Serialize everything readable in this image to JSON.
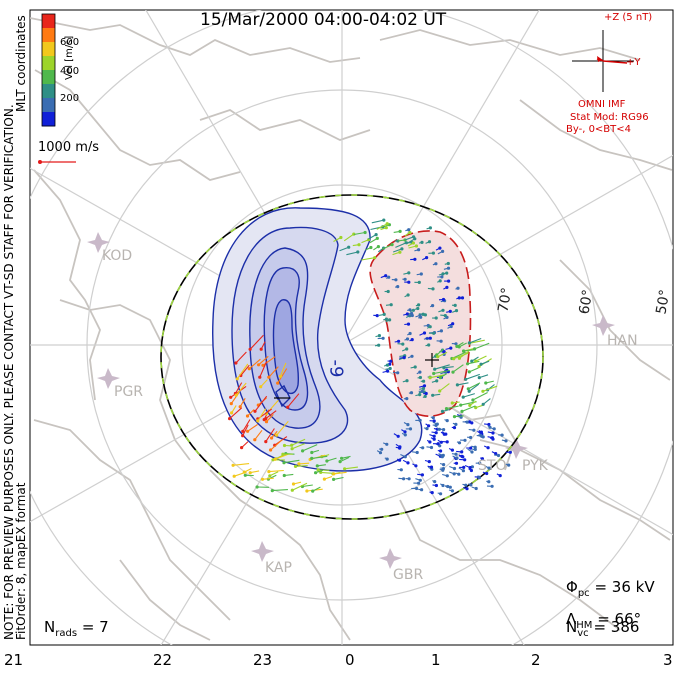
{
  "title": "15/Mar/2000 04:00-04:02 UT",
  "side_note": {
    "preview": "NOTE: FOR PREVIEW PURPOSES ONLY. PLEASE CONTACT VT-SD STAFF FOR VERIFICATION.",
    "coords": "MLT coordinates",
    "fit": "FitOrder: 8,  mapEX format"
  },
  "colorbar": {
    "label": "Vel [m/s]",
    "ticks": [
      "600",
      "400",
      "200"
    ],
    "colors": [
      "#e8261b",
      "#ff7a12",
      "#f2c81c",
      "#9dd42b",
      "#4fb84c",
      "#2f8f86",
      "#3a6db2",
      "#1020d8"
    ]
  },
  "scale_vector": {
    "label": "1000 m/s"
  },
  "imf": {
    "z_label": "+Z (5 nT)",
    "y_label": "+Y",
    "source": "OMNI IMF",
    "model": "Stat Mod: RG96",
    "condition": "By-,  0<BT<4"
  },
  "latitude_labels": [
    "70°",
    "60°",
    "50°"
  ],
  "stations": [
    "KOD",
    "PGR",
    "KAP",
    "GBR",
    "HAN",
    "PYK",
    "STO"
  ],
  "contour_label": "-9",
  "stats": {
    "phi_pc": "= 36 kV",
    "lambda_hm": "= 66°",
    "n_vc": "= 386",
    "n_rads": "= 7"
  },
  "mlt_ticks": [
    "21",
    "22",
    "23",
    "0",
    "1",
    "2",
    "3"
  ]
}
